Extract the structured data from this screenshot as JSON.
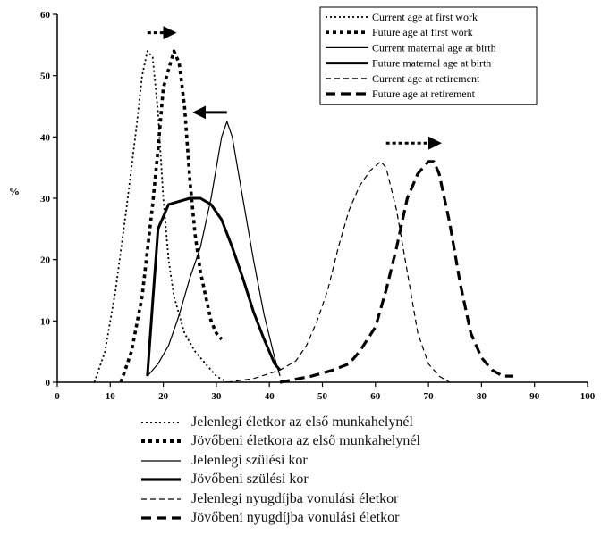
{
  "chart_data": {
    "type": "line",
    "title": "",
    "xlabel": "",
    "ylabel": "%",
    "xlim": [
      0,
      100
    ],
    "ylim": [
      0,
      60
    ],
    "xticks": [
      0,
      10,
      20,
      30,
      40,
      50,
      60,
      70,
      80,
      90,
      100
    ],
    "yticks": [
      0,
      10,
      20,
      30,
      40,
      50,
      60
    ],
    "legend_position": "top-right",
    "series": [
      {
        "name": "Current age at first work",
        "style": "dotted-thin",
        "points": [
          [
            7,
            0
          ],
          [
            9,
            5
          ],
          [
            11,
            15
          ],
          [
            13,
            28
          ],
          [
            15,
            42
          ],
          [
            16,
            50
          ],
          [
            17,
            54
          ],
          [
            18,
            53
          ],
          [
            19,
            44
          ],
          [
            20,
            30
          ],
          [
            21,
            20
          ],
          [
            22,
            14
          ],
          [
            24,
            8
          ],
          [
            26,
            5
          ],
          [
            28,
            3
          ],
          [
            30,
            1
          ],
          [
            32,
            0
          ]
        ]
      },
      {
        "name": "Future age at first work",
        "style": "dotted-thick",
        "points": [
          [
            12,
            0
          ],
          [
            14,
            5
          ],
          [
            16,
            14
          ],
          [
            18,
            29
          ],
          [
            19,
            38
          ],
          [
            20,
            48
          ],
          [
            21,
            51
          ],
          [
            22,
            54
          ],
          [
            23,
            52
          ],
          [
            24,
            45
          ],
          [
            25,
            33
          ],
          [
            26,
            24
          ],
          [
            27,
            18
          ],
          [
            28,
            14
          ],
          [
            29,
            10
          ],
          [
            30,
            8
          ],
          [
            31,
            7
          ]
        ]
      },
      {
        "name": "Current maternal age at birth",
        "style": "solid-thin",
        "points": [
          [
            17,
            1
          ],
          [
            19,
            3
          ],
          [
            21,
            6
          ],
          [
            23,
            11
          ],
          [
            25,
            17
          ],
          [
            27,
            22
          ],
          [
            29,
            30
          ],
          [
            31,
            40
          ],
          [
            32,
            42.5
          ],
          [
            33,
            40
          ],
          [
            35,
            30
          ],
          [
            37,
            20
          ],
          [
            39,
            11
          ],
          [
            41,
            4
          ],
          [
            42,
            1
          ]
        ]
      },
      {
        "name": "Future maternal age at birth",
        "style": "solid-thick",
        "points": [
          [
            17,
            1
          ],
          [
            18,
            13
          ],
          [
            19,
            25
          ],
          [
            21,
            29
          ],
          [
            23,
            29.5
          ],
          [
            25,
            30
          ],
          [
            27,
            30
          ],
          [
            29,
            29
          ],
          [
            31,
            26.5
          ],
          [
            33,
            22
          ],
          [
            35,
            17
          ],
          [
            37,
            11.5
          ],
          [
            39,
            7
          ],
          [
            41,
            3
          ],
          [
            42,
            2
          ]
        ]
      },
      {
        "name": "Current age at retirement",
        "style": "dashed-thin",
        "points": [
          [
            32,
            0
          ],
          [
            37,
            0.6
          ],
          [
            42,
            2
          ],
          [
            45,
            3.5
          ],
          [
            47,
            6
          ],
          [
            49,
            10
          ],
          [
            51,
            15
          ],
          [
            53,
            22
          ],
          [
            55,
            28
          ],
          [
            57,
            32
          ],
          [
            59,
            34.5
          ],
          [
            61,
            36
          ],
          [
            62,
            35
          ],
          [
            64,
            28
          ],
          [
            66,
            18
          ],
          [
            68,
            8
          ],
          [
            70,
            3
          ],
          [
            72,
            1
          ],
          [
            74,
            0
          ]
        ]
      },
      {
        "name": "Future age at retirement",
        "style": "dashed-thick",
        "points": [
          [
            42,
            0
          ],
          [
            48,
            1
          ],
          [
            52,
            2
          ],
          [
            55,
            3
          ],
          [
            57,
            5
          ],
          [
            60,
            9
          ],
          [
            62,
            15
          ],
          [
            64,
            22
          ],
          [
            66,
            30
          ],
          [
            68,
            34
          ],
          [
            70,
            36
          ],
          [
            71,
            36
          ],
          [
            72,
            34
          ],
          [
            74,
            26
          ],
          [
            76,
            16
          ],
          [
            78,
            8
          ],
          [
            80,
            4
          ],
          [
            82,
            2
          ],
          [
            84,
            1
          ],
          [
            86,
            1
          ]
        ]
      }
    ],
    "annotations": [
      {
        "type": "arrow",
        "direction": "right",
        "y": 57,
        "x_from": 17,
        "x_to": 22
      },
      {
        "type": "arrow",
        "direction": "left",
        "y": 44,
        "x_from": 32,
        "x_to": 26
      },
      {
        "type": "arrow",
        "direction": "right",
        "y": 39,
        "x_from": 62,
        "x_to": 72
      }
    ]
  },
  "legend_hu": [
    "Jelenlegi életkor az első munkahelynél",
    "Jövőbeni életkora az első munkahelynél",
    "Jelenlegi szülési kor",
    "Jövőbeni szülési kor",
    "Jelenlegi nyugdíjba vonulási életkor",
    "Jövőbeni nyugdíjba vonulási életkor"
  ]
}
